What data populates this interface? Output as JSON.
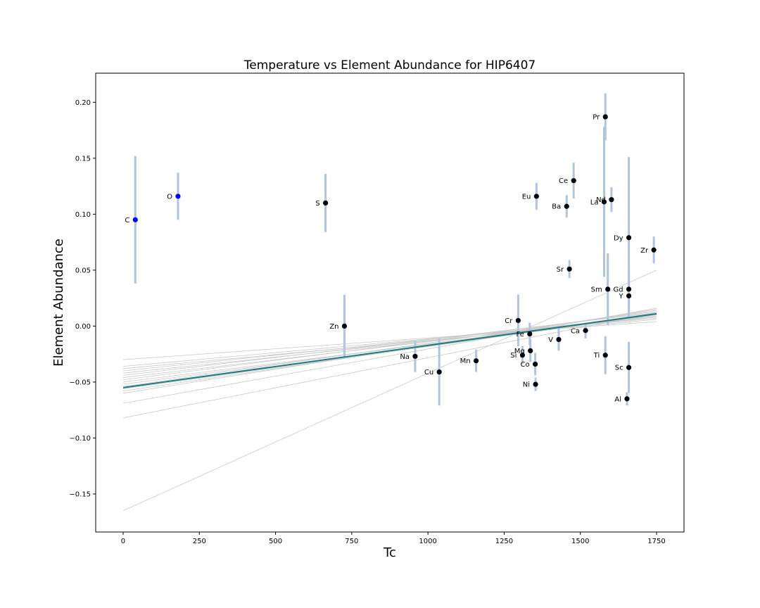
{
  "chart_data": {
    "type": "scatter",
    "title": "Temperature vs Element Abundance for HIP6407",
    "xlabel": "Tc",
    "ylabel": "Element Abundance",
    "xlim": [
      -90,
      1840
    ],
    "ylim": [
      -0.184,
      0.226
    ],
    "xticks": [
      0,
      250,
      500,
      750,
      1000,
      1250,
      1500,
      1750
    ],
    "yticks": [
      -0.15,
      -0.1,
      -0.05,
      0.0,
      0.05,
      0.1,
      0.15,
      0.2
    ],
    "ytick_labels": [
      "−0.15",
      "−0.10",
      "−0.05",
      "0.00",
      "0.05",
      "0.10",
      "0.15",
      "0.20"
    ],
    "grid": false,
    "colors": {
      "point_volatile": "#0000ff",
      "point_refractory": "#000000",
      "errorbar": "#b0c4de",
      "sample_fit": "#c8c8c8",
      "best_fit": "#1a7a80"
    },
    "points": [
      {
        "el": "C",
        "x": 40,
        "y": 0.095,
        "err": 0.057,
        "volatile": true
      },
      {
        "el": "O",
        "x": 180,
        "y": 0.116,
        "err": 0.021,
        "volatile": true
      },
      {
        "el": "S",
        "x": 664,
        "y": 0.11,
        "err": 0.026
      },
      {
        "el": "Zn",
        "x": 726,
        "y": 0.0,
        "err": 0.028
      },
      {
        "el": "Na",
        "x": 958,
        "y": -0.027,
        "err": 0.014
      },
      {
        "el": "Cu",
        "x": 1037,
        "y": -0.041,
        "err": 0.03
      },
      {
        "el": "Mn",
        "x": 1158,
        "y": -0.031,
        "err": 0.01
      },
      {
        "el": "Cr",
        "x": 1296,
        "y": 0.005,
        "err": 0.023
      },
      {
        "el": "Fe",
        "x": 1334,
        "y": -0.007,
        "err": 0.01
      },
      {
        "el": "Mg",
        "x": 1336,
        "y": -0.022,
        "err": 0.01
      },
      {
        "el": "Si",
        "x": 1310,
        "y": -0.026,
        "err": 0.008
      },
      {
        "el": "Co",
        "x": 1352,
        "y": -0.034,
        "err": 0.01
      },
      {
        "el": "Ni",
        "x": 1353,
        "y": -0.052,
        "err": 0.006
      },
      {
        "el": "Eu",
        "x": 1356,
        "y": 0.116,
        "err": 0.012
      },
      {
        "el": "V",
        "x": 1429,
        "y": -0.012,
        "err": 0.01
      },
      {
        "el": "Ba",
        "x": 1455,
        "y": 0.107,
        "err": 0.01
      },
      {
        "el": "Sr",
        "x": 1464,
        "y": 0.051,
        "err": 0.008
      },
      {
        "el": "Ce",
        "x": 1478,
        "y": 0.13,
        "err": 0.016
      },
      {
        "el": "Ca",
        "x": 1517,
        "y": -0.004,
        "err": 0.007
      },
      {
        "el": "La",
        "x": 1578,
        "y": 0.111,
        "err": 0.067
      },
      {
        "el": "Pr",
        "x": 1582,
        "y": 0.187,
        "err": 0.021
      },
      {
        "el": "Ti",
        "x": 1582,
        "y": -0.026,
        "err": 0.017
      },
      {
        "el": "Sm",
        "x": 1590,
        "y": 0.033,
        "err": 0.032
      },
      {
        "el": "Nd",
        "x": 1602,
        "y": 0.113,
        "err": 0.011
      },
      {
        "el": "Al",
        "x": 1653,
        "y": -0.065,
        "err": 0.006
      },
      {
        "el": "Dy",
        "x": 1659,
        "y": 0.079,
        "err": 0.072
      },
      {
        "el": "Gd",
        "x": 1659,
        "y": 0.033,
        "err": 0.02
      },
      {
        "el": "Y",
        "x": 1659,
        "y": 0.027,
        "err": 0.014
      },
      {
        "el": "Sc",
        "x": 1659,
        "y": -0.037,
        "err": 0.023
      },
      {
        "el": "Zr",
        "x": 1741,
        "y": 0.068,
        "err": 0.012
      }
    ],
    "best_fit": {
      "x0": 0,
      "y0": -0.055,
      "x1": 1750,
      "y1": 0.011
    },
    "sample_fits": [
      {
        "y0": -0.03,
        "y1": 0.004
      },
      {
        "y0": -0.036,
        "y1": 0.007
      },
      {
        "y0": -0.038,
        "y1": 0.006
      },
      {
        "y0": -0.04,
        "y1": 0.009
      },
      {
        "y0": -0.042,
        "y1": 0.008
      },
      {
        "y0": -0.044,
        "y1": 0.012
      },
      {
        "y0": -0.046,
        "y1": 0.01
      },
      {
        "y0": -0.048,
        "y1": 0.013
      },
      {
        "y0": -0.05,
        "y1": 0.009
      },
      {
        "y0": -0.052,
        "y1": 0.011
      },
      {
        "y0": -0.054,
        "y1": 0.014
      },
      {
        "y0": -0.056,
        "y1": 0.01
      },
      {
        "y0": -0.058,
        "y1": 0.012
      },
      {
        "y0": -0.06,
        "y1": 0.015
      },
      {
        "y0": -0.069,
        "y1": 0.016
      },
      {
        "y0": -0.082,
        "y1": 0.012
      },
      {
        "y0": -0.165,
        "y1": 0.05
      }
    ]
  }
}
